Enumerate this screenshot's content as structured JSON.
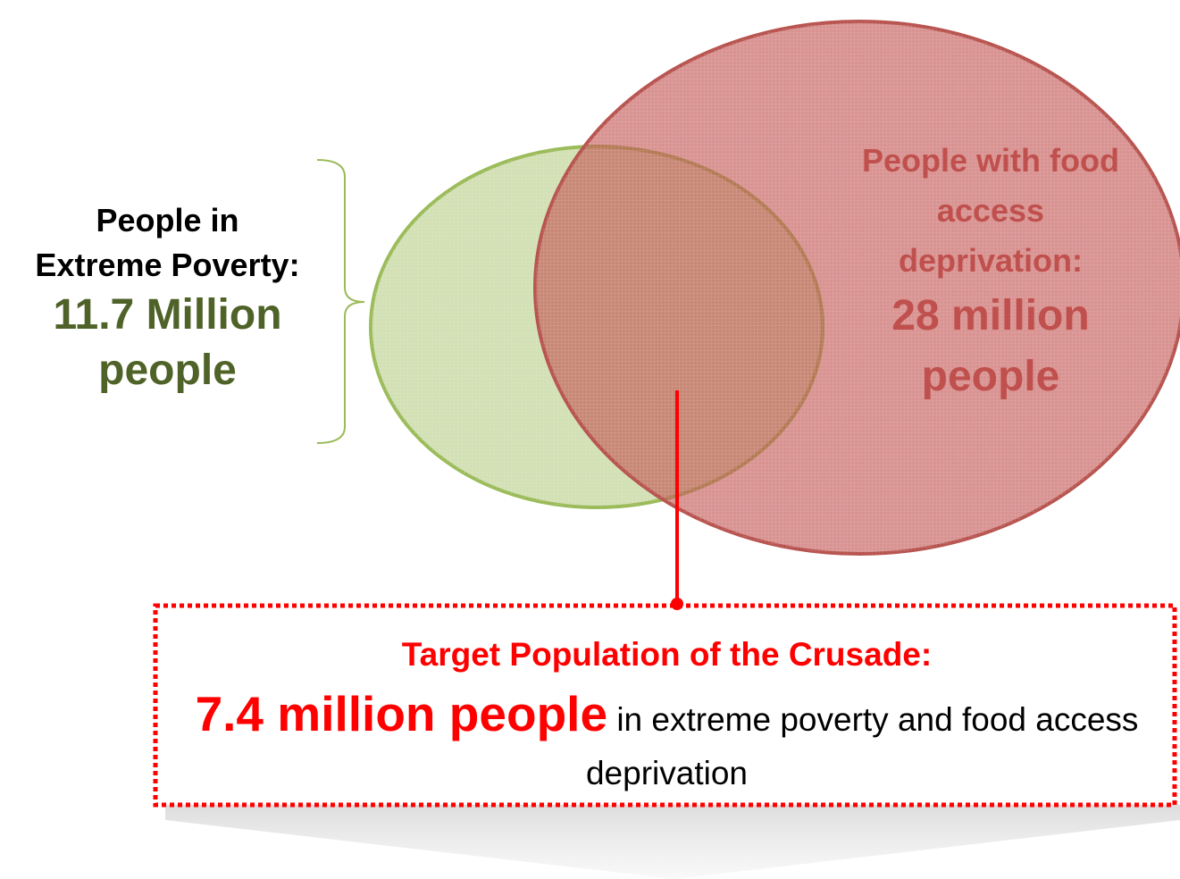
{
  "diagram": {
    "type": "venn",
    "sets": [
      {
        "id": "extreme-poverty",
        "label_lines": [
          "People in",
          "Extreme Poverty:"
        ],
        "value_lines": [
          "11.7 Million",
          "people"
        ],
        "color": "#9bbb59",
        "text_color": "#4f6228"
      },
      {
        "id": "food-access-deprivation",
        "label_lines": [
          "People with food",
          "access",
          "deprivation:"
        ],
        "value_lines": [
          "28 million",
          "people"
        ],
        "color": "#c0504d",
        "text_color": "#c0504d"
      }
    ],
    "intersection": {
      "title": "Target Population of the Crusade:",
      "value": "7.4 million people",
      "description": "in extreme poverty and food access deprivation",
      "color": "#ff0000"
    }
  }
}
